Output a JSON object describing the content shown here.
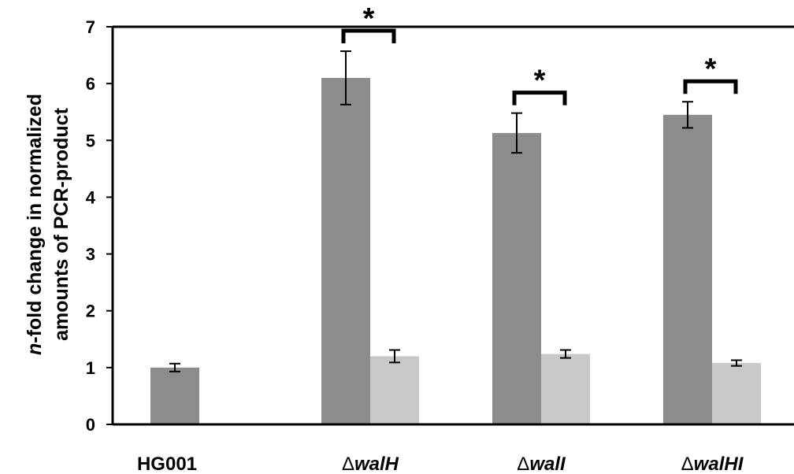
{
  "chart_data": {
    "type": "bar",
    "title": "",
    "ylabel_line1_italic": "n",
    "ylabel_line1_rest": "-fold change in normalized",
    "ylabel_line2": "amounts of PCR-product",
    "xlabel": "",
    "ylim": [
      0,
      7
    ],
    "yticks": [
      "0",
      "1",
      "2",
      "3",
      "4",
      "5",
      "6",
      "7"
    ],
    "categories": [
      {
        "prefix": "",
        "name": "HG001",
        "italic": false
      },
      {
        "prefix": "Δ",
        "name": "walH",
        "italic": true
      },
      {
        "prefix": "Δ",
        "name": "walI",
        "italic": true
      },
      {
        "prefix": "Δ",
        "name": "walHI",
        "italic": true
      }
    ],
    "series": [
      {
        "color": "#8c8c8c",
        "values": [
          1.0,
          6.1,
          5.13,
          5.45
        ],
        "errors": [
          0.07,
          0.47,
          0.35,
          0.23
        ]
      },
      {
        "color": "#c8c8c8",
        "values": [
          null,
          1.2,
          1.24,
          1.08
        ],
        "errors": [
          null,
          0.11,
          0.07,
          0.05
        ]
      }
    ],
    "significance": [
      {
        "category": 1,
        "label": "*"
      },
      {
        "category": 2,
        "label": "*"
      },
      {
        "category": 3,
        "label": "*"
      }
    ],
    "grid": false,
    "legend": "none"
  }
}
